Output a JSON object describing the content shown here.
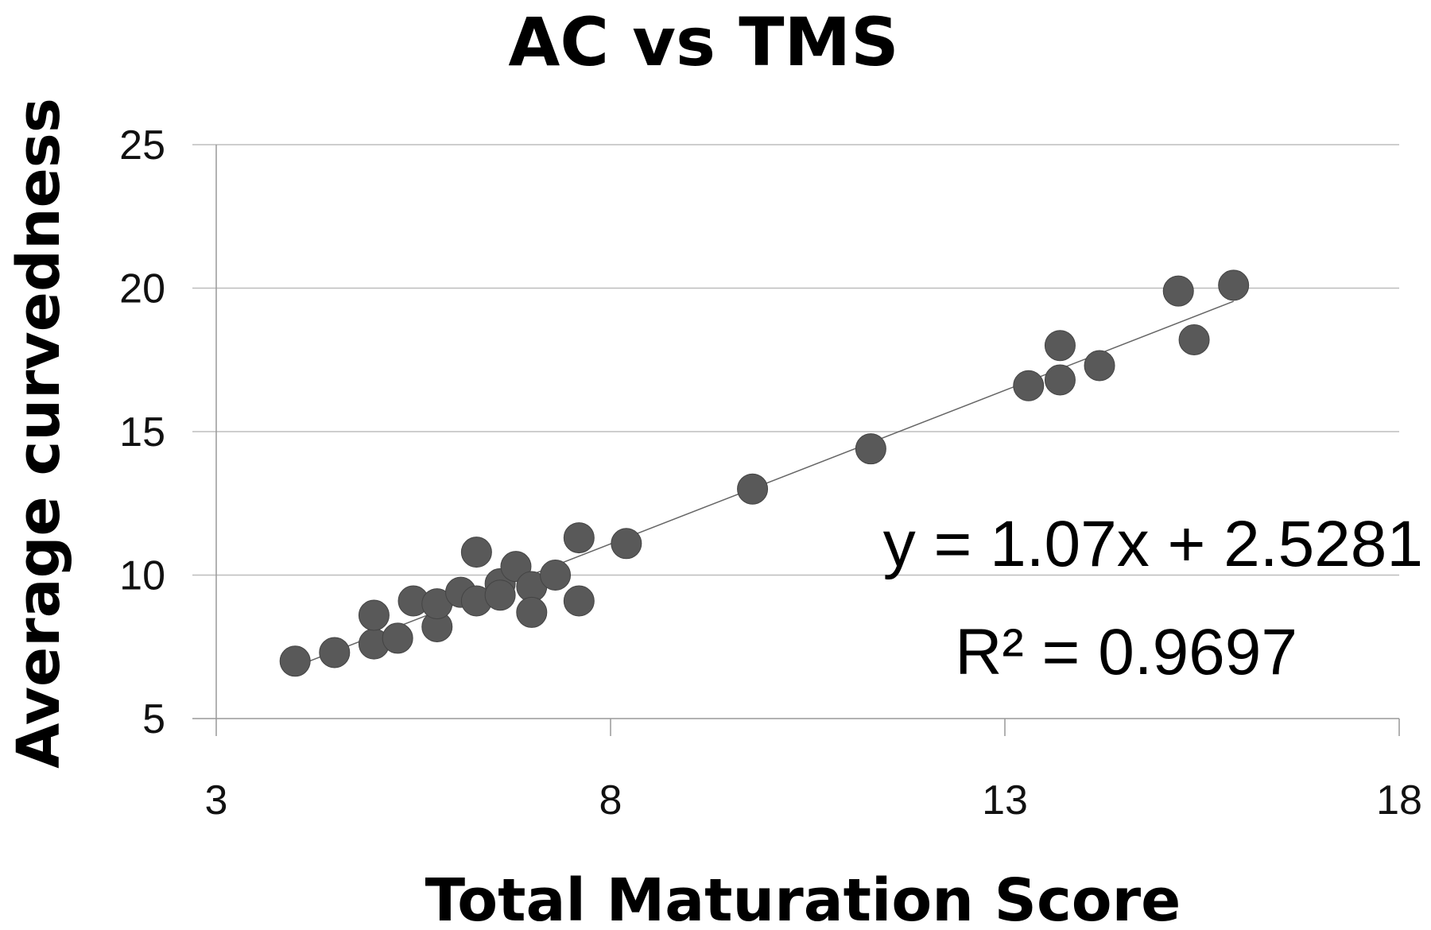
{
  "chart_data": {
    "type": "scatter",
    "title": "AC vs TMS",
    "xlabel": "Total Maturation Score",
    "ylabel": "Average curvedness",
    "xlim": [
      3,
      18
    ],
    "ylim": [
      5,
      25
    ],
    "xticks": [
      "3",
      "8",
      "13",
      "18"
    ],
    "yticks": [
      "5",
      "10",
      "15",
      "20",
      "25"
    ],
    "grid": true,
    "series": [
      {
        "points": [
          {
            "x": 4.0,
            "y": 7.0
          },
          {
            "x": 4.5,
            "y": 7.3
          },
          {
            "x": 5.0,
            "y": 7.6
          },
          {
            "x": 5.0,
            "y": 8.6
          },
          {
            "x": 5.3,
            "y": 7.8
          },
          {
            "x": 5.5,
            "y": 9.1
          },
          {
            "x": 5.8,
            "y": 8.2
          },
          {
            "x": 5.8,
            "y": 9.0
          },
          {
            "x": 6.1,
            "y": 9.4
          },
          {
            "x": 6.3,
            "y": 9.1
          },
          {
            "x": 6.3,
            "y": 10.8
          },
          {
            "x": 6.6,
            "y": 9.7
          },
          {
            "x": 6.6,
            "y": 9.3
          },
          {
            "x": 6.8,
            "y": 10.3
          },
          {
            "x": 7.0,
            "y": 9.6
          },
          {
            "x": 7.0,
            "y": 8.7
          },
          {
            "x": 7.3,
            "y": 10.0
          },
          {
            "x": 7.6,
            "y": 11.3
          },
          {
            "x": 7.6,
            "y": 9.1
          },
          {
            "x": 8.2,
            "y": 11.1
          },
          {
            "x": 9.8,
            "y": 13.0
          },
          {
            "x": 11.3,
            "y": 14.4
          },
          {
            "x": 13.3,
            "y": 16.6
          },
          {
            "x": 13.7,
            "y": 18.0
          },
          {
            "x": 13.7,
            "y": 16.8
          },
          {
            "x": 14.2,
            "y": 17.3
          },
          {
            "x": 15.2,
            "y": 19.9
          },
          {
            "x": 15.4,
            "y": 18.2
          },
          {
            "x": 15.9,
            "y": 20.1
          }
        ]
      }
    ],
    "trendline": {
      "slope": 1.07,
      "intercept": 2.5281,
      "x_start": 4.0,
      "x_end": 15.9
    },
    "annotations": {
      "equation": "y = 1.07x + 2.5281",
      "r2_label": "R² = 0.9697"
    }
  }
}
